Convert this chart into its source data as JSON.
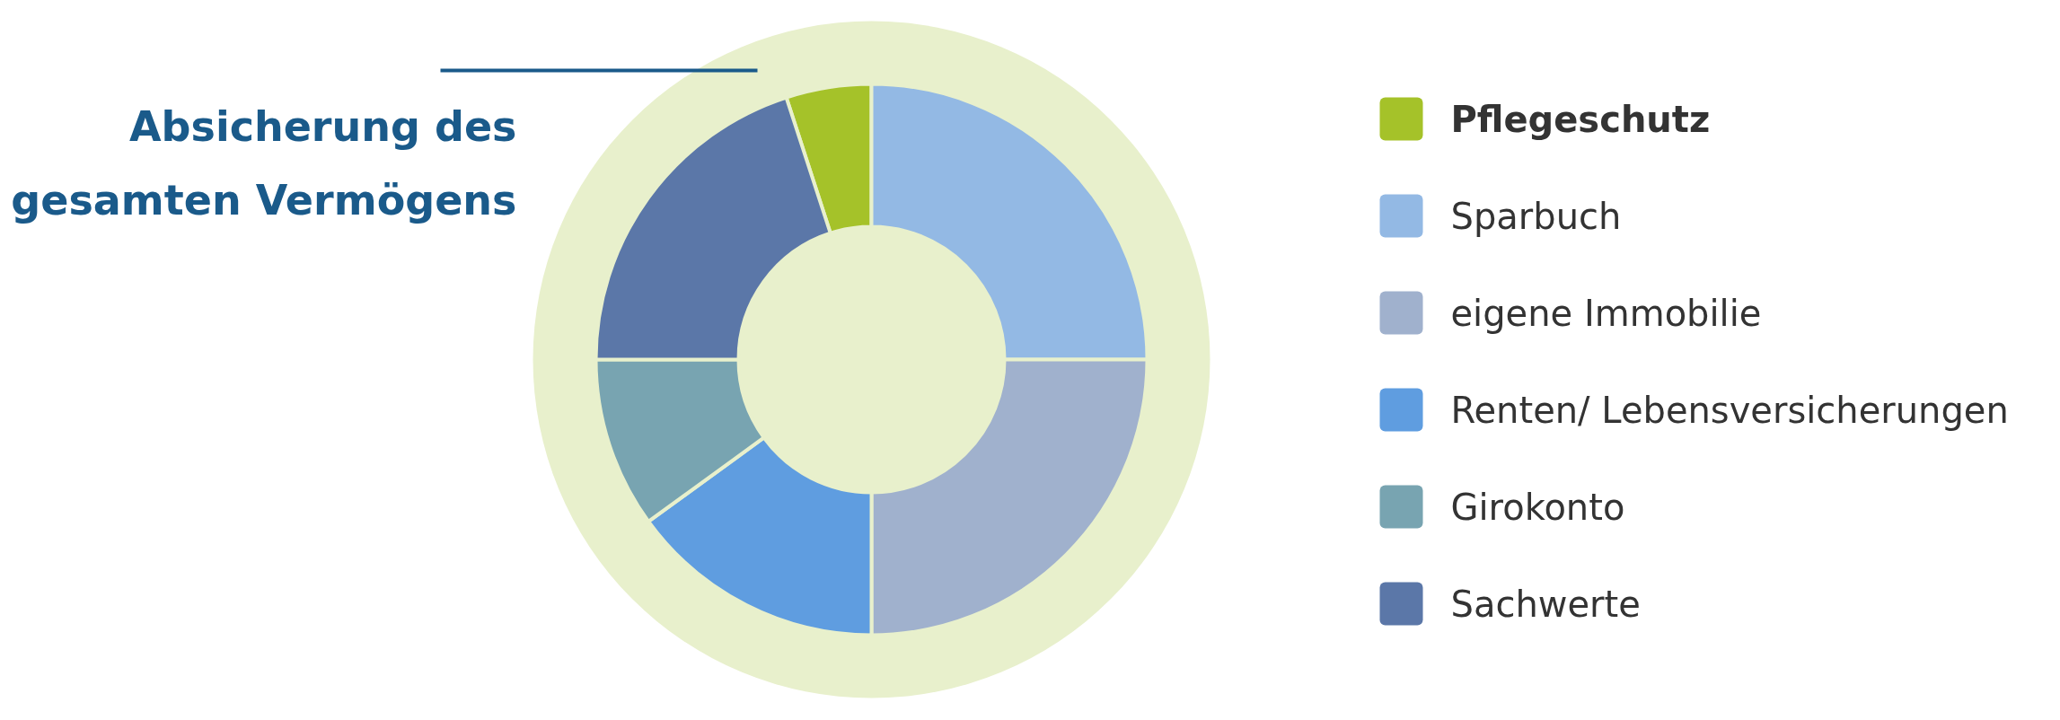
{
  "chart_data": {
    "type": "donut",
    "categories": [
      "Pflegeschutz",
      "Sparbuch",
      "eigene Immobilie",
      "Renten/ Lebensversicherungen",
      "Girokonto",
      "Sachwerte"
    ],
    "values": [
      5,
      25,
      25,
      15,
      10,
      20
    ],
    "colors": [
      "#a5c229",
      "#93b9e4",
      "#a0b1cd",
      "#5f9de0",
      "#78a4b1",
      "#5b77a8"
    ],
    "legend": "right",
    "annotations": [
      "Absicherung des gesamten Vermögens"
    ]
  }
}
